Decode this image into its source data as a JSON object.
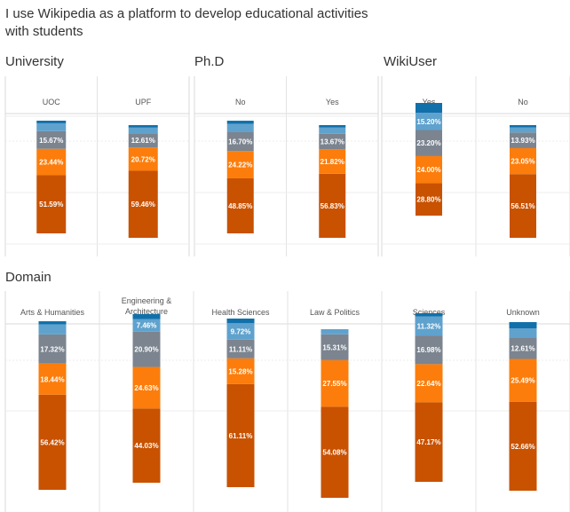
{
  "title": "I use Wikipedia as a platform to develop educational activities with students",
  "colors": {
    "seg1": "#c85200",
    "seg2": "#fc7d0b",
    "seg3": "#7b848f",
    "seg4": "#5fa2ce",
    "seg5": "#1170aa"
  },
  "chart_data": [
    {
      "type": "bar",
      "stacked": true,
      "title": "University",
      "categories": [
        "UOC",
        "UPF"
      ],
      "series": [
        {
          "values": [
            51.59,
            59.46
          ],
          "labels": [
            "51.59%",
            "59.46%"
          ]
        },
        {
          "values": [
            23.44,
            20.72
          ],
          "labels": [
            "23.44%",
            "20.72%"
          ]
        },
        {
          "values": [
            15.67,
            12.61
          ],
          "labels": [
            "15.67%",
            "12.61%"
          ]
        },
        {
          "values": [
            7.0,
            5.0
          ],
          "labels": [
            "",
            ""
          ]
        },
        {
          "values": [
            2.3,
            2.2
          ],
          "labels": [
            "",
            ""
          ]
        }
      ]
    },
    {
      "type": "bar",
      "stacked": true,
      "title": "Ph.D",
      "categories": [
        "No",
        "Yes"
      ],
      "series": [
        {
          "values": [
            48.85,
            56.83
          ],
          "labels": [
            "48.85%",
            "56.83%"
          ]
        },
        {
          "values": [
            24.22,
            21.82
          ],
          "labels": [
            "24.22%",
            "21.82%"
          ]
        },
        {
          "values": [
            16.7,
            13.67
          ],
          "labels": [
            "16.70%",
            "13.67%"
          ]
        },
        {
          "values": [
            7.5,
            5.5
          ],
          "labels": [
            "",
            ""
          ]
        },
        {
          "values": [
            2.7,
            2.2
          ],
          "labels": [
            "",
            ""
          ]
        }
      ]
    },
    {
      "type": "bar",
      "stacked": true,
      "title": "WikiUser",
      "categories": [
        "Yes",
        "No"
      ],
      "series": [
        {
          "values": [
            28.8,
            56.51
          ],
          "labels": [
            "28.80%",
            "56.51%"
          ]
        },
        {
          "values": [
            24.0,
            23.05
          ],
          "labels": [
            "24.00%",
            "23.05%"
          ]
        },
        {
          "values": [
            23.2,
            13.93
          ],
          "labels": [
            "23.20%",
            "13.93%"
          ]
        },
        {
          "values": [
            15.2,
            4.5
          ],
          "labels": [
            "15.20%",
            ""
          ]
        },
        {
          "values": [
            8.8,
            2.0
          ],
          "labels": [
            "",
            ""
          ]
        }
      ]
    },
    {
      "type": "bar",
      "stacked": true,
      "title": "Domain",
      "categories": [
        "Arts & Humanities",
        "Engineering & Architecture",
        "Health Sciences",
        "Law & Politics",
        "Sciences",
        "Unknown"
      ],
      "series": [
        {
          "values": [
            56.42,
            44.03,
            61.11,
            54.08,
            47.17,
            52.66
          ],
          "labels": [
            "56.42%",
            "44.03%",
            "61.11%",
            "54.08%",
            "47.17%",
            "52.66%"
          ]
        },
        {
          "values": [
            18.44,
            24.63,
            15.28,
            27.55,
            22.64,
            25.49
          ],
          "labels": [
            "18.44%",
            "24.63%",
            "15.28%",
            "27.55%",
            "22.64%",
            "25.49%"
          ]
        },
        {
          "values": [
            17.32,
            20.9,
            11.11,
            15.31,
            16.98,
            12.61
          ],
          "labels": [
            "17.32%",
            "20.90%",
            "11.11%",
            "15.31%",
            "16.98%",
            "12.61%"
          ]
        },
        {
          "values": [
            6.0,
            7.46,
            9.72,
            3.06,
            11.32,
            5.5
          ],
          "labels": [
            "",
            "7.46%",
            "9.72%",
            "",
            "11.32%",
            ""
          ]
        },
        {
          "values": [
            1.8,
            2.98,
            2.78,
            0.0,
            1.89,
            3.74
          ],
          "labels": [
            "",
            "",
            "",
            "",
            "",
            ""
          ]
        }
      ]
    }
  ]
}
